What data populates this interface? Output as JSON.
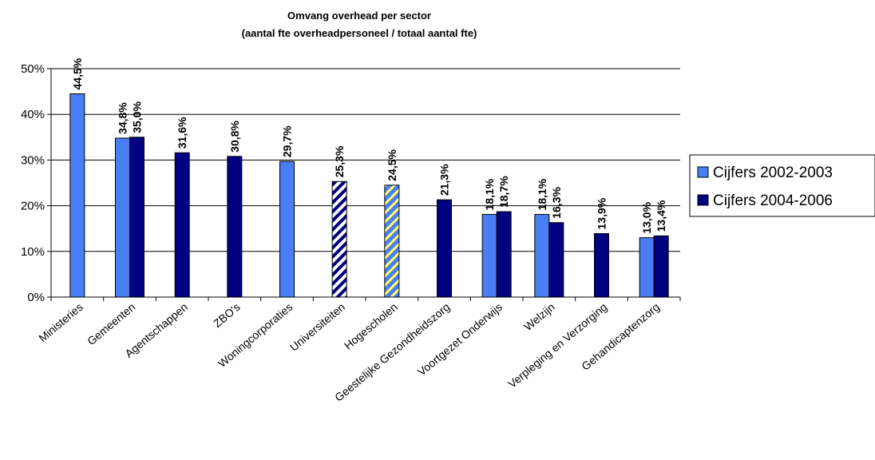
{
  "chart_data": {
    "type": "bar",
    "title": "Omvang overhead per sector",
    "subtitle": "(aantal fte overheadpersoneel / totaal aantal fte)",
    "xlabel": "",
    "ylabel": "",
    "ylim": [
      0,
      50
    ],
    "yticks": [
      "0%",
      "10%",
      "20%",
      "30%",
      "40%",
      "50%"
    ],
    "grid": true,
    "legend_position": "right",
    "categories": [
      "Ministeries",
      "Gemeenten",
      "Agentschappen",
      "ZBO's",
      "Woningcorporaties",
      "Universiteiten",
      "Hogescholen",
      "Geestelijke Gezondheidszorg",
      "Voortgezet Onderwijs",
      "Welzijn",
      "Verpleging en Verzorging",
      "Gehandicaptenzorg"
    ],
    "series": [
      {
        "name": "Cijfers 2002-2003",
        "color": "#4a7ef5",
        "values": [
          44.5,
          34.8,
          null,
          null,
          29.7,
          null,
          24.5,
          null,
          18.1,
          18.1,
          null,
          13.0
        ],
        "labels": [
          "44,5%",
          "34,8%",
          null,
          null,
          "29,7%",
          null,
          "24,5%",
          null,
          "18,1%",
          "18,1%",
          null,
          "13,0%"
        ]
      },
      {
        "name": "Cijfers 2004-2006",
        "color": "#000080",
        "values": [
          null,
          35.0,
          31.6,
          30.8,
          null,
          25.3,
          null,
          21.3,
          18.7,
          16.3,
          13.9,
          13.4
        ],
        "labels": [
          null,
          "35,0%",
          "31,6%",
          "30,8%",
          null,
          "25,3%",
          null,
          "21,3%",
          "18,7%",
          "16,3%",
          "13,9%",
          "13,4%"
        ]
      }
    ],
    "hatched_categories": [
      "Universiteiten",
      "Hogescholen"
    ]
  }
}
